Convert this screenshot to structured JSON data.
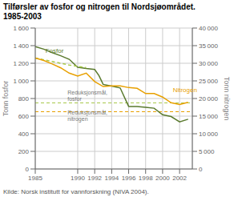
{
  "chart_data": {
    "type": "line",
    "title": "Tilførsler av fosfor og nitrogen til Nordsjøområdet.",
    "subtitle": "1985-2003",
    "ylabel": "Tonn fosfor",
    "y2label": "Tonn nitrogen",
    "source": "Kilde: Norsk institutt for vannforskning (NIVA 2004).",
    "xlim": [
      1985,
      2003.5
    ],
    "xticks": [
      1985,
      1990,
      1992,
      1994,
      1996,
      1998,
      2000,
      2002
    ],
    "ylim": [
      0,
      1600
    ],
    "yticks": [
      0,
      200,
      400,
      600,
      800,
      {
        "value": 1000,
        "label": "1 000"
      },
      {
        "value": 1200,
        "label": "1 200"
      },
      {
        "value": 1400,
        "label": "1 400"
      },
      {
        "value": 1600,
        "label": "1 600"
      }
    ],
    "y2lim": [
      0,
      40000
    ],
    "y2ticks": [
      0,
      {
        "value": 5000,
        "label": "5 000"
      },
      {
        "value": 10000,
        "label": "10 000"
      },
      {
        "value": 15000,
        "label": "15 000"
      },
      {
        "value": 20000,
        "label": "20 000"
      },
      {
        "value": 25000,
        "label": "25 000"
      },
      {
        "value": 30000,
        "label": "30 000"
      },
      {
        "value": 35000,
        "label": "35 000"
      },
      {
        "value": 40000,
        "label": "40 000"
      }
    ],
    "grid": true,
    "series": [
      {
        "x": [
          1985,
          1986,
          1987,
          1988,
          1989,
          1990,
          1991,
          1992,
          1992.5,
          1993,
          1994,
          1995,
          1996,
          1997,
          1998,
          1999,
          2000,
          2001,
          2002,
          2003
        ],
        "values": [
          1390,
          1360,
          1320,
          1285,
          1245,
          1155,
          1140,
          1130,
          1060,
          960,
          940,
          920,
          710,
          710,
          700,
          690,
          615,
          595,
          535,
          565
        ],
        "color": "#5a7a2e",
        "line_style": "solid"
      },
      {
        "x": [
          1985,
          1989,
          1991
        ],
        "values": [
          1260,
          1180,
          1150
        ],
        "color": "#a8c84a",
        "line_style": "dashed"
      },
      {
        "x": [
          1985,
          1986,
          1987,
          1988,
          1989,
          1990,
          1991,
          1992,
          1993,
          1994,
          1995,
          1996,
          1997,
          1998,
          1999,
          2000,
          2001,
          2002,
          2003
        ],
        "values": [
          31500,
          30800,
          29800,
          28700,
          27200,
          26400,
          27200,
          24800,
          23400,
          23600,
          23600,
          23100,
          22900,
          21400,
          21400,
          20400,
          18800,
          18300,
          18900
        ],
        "color": "#e8a000",
        "line_style": "solid",
        "axis": "y2"
      }
    ],
    "hlines": [
      {
        "y": 750,
        "color": "#a8c84a",
        "line_style": "dashed"
      },
      {
        "y": 650,
        "color": "#e8a000",
        "line_style": "dashed"
      }
    ],
    "annotations": [
      {
        "text": "Fosfor",
        "x": 1986.2,
        "y": 1350,
        "color": "#5a7a2e"
      },
      {
        "text": "Reduksjonsmål,\nfosfor",
        "x": 1988.8,
        "y": 890,
        "color": "#777777"
      },
      {
        "text": "Reduksjonsmål,\nnitrogen",
        "x": 1988.8,
        "y": 665,
        "color": "#777777"
      },
      {
        "text": "Nitrogen",
        "x": 2001.2,
        "y": 22500,
        "color": "#e8a000",
        "axis": "y2"
      }
    ]
  }
}
